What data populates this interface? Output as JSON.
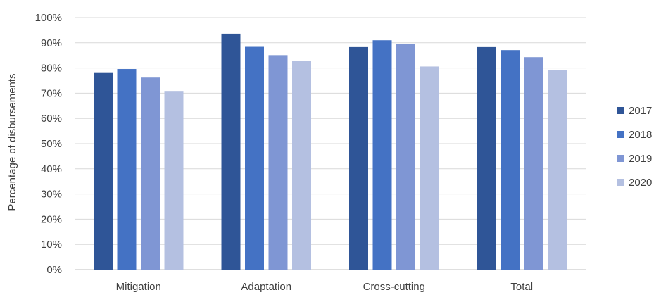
{
  "chart_data": {
    "type": "bar",
    "title": "",
    "xlabel": "",
    "ylabel": "Percentage of disbursements",
    "categories": [
      "Mitigation",
      "Adaptation",
      "Cross-cutting",
      "Total"
    ],
    "series": [
      {
        "name": "2017",
        "color": "#2f5597",
        "values": [
          78.3,
          93.6,
          88.3,
          88.3
        ]
      },
      {
        "name": "2018",
        "color": "#4472c4",
        "values": [
          79.6,
          88.4,
          91.0,
          87.1
        ]
      },
      {
        "name": "2019",
        "color": "#7f96d4",
        "values": [
          76.2,
          85.1,
          89.4,
          84.3
        ]
      },
      {
        "name": "2020",
        "color": "#b4c0e1",
        "values": [
          70.9,
          82.8,
          80.6,
          79.2
        ]
      }
    ],
    "ylim": [
      0,
      100
    ],
    "yticks": [
      "0%",
      "10%",
      "20%",
      "30%",
      "40%",
      "50%",
      "60%",
      "70%",
      "80%",
      "90%",
      "100%"
    ],
    "grid": true,
    "legend_position": "right"
  }
}
